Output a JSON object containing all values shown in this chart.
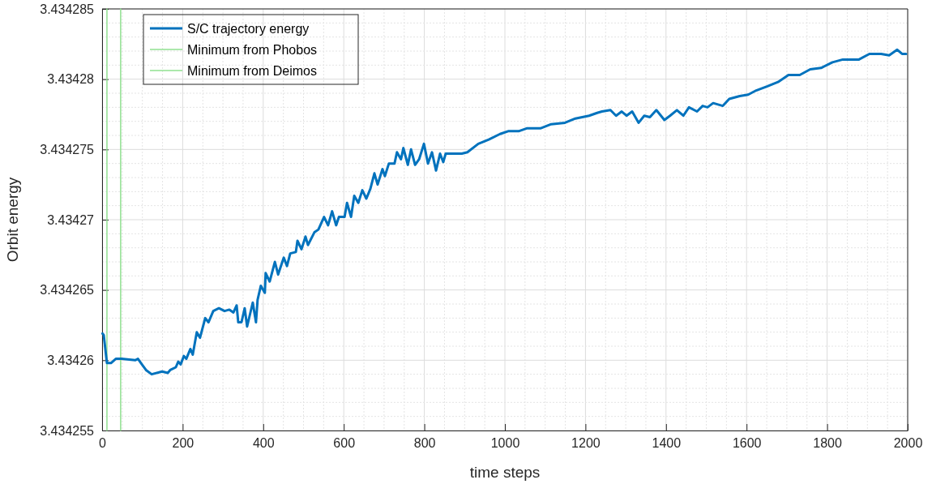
{
  "chart_data": {
    "type": "line",
    "xlabel": "time steps",
    "ylabel": "Orbit energy",
    "xlim": [
      0,
      2000
    ],
    "xticks": [
      0,
      200,
      400,
      600,
      800,
      1000,
      1200,
      1400,
      1600,
      1800,
      2000
    ],
    "ylim": [
      3.434255,
      3.434285
    ],
    "yticks": [
      3.434255,
      3.43426,
      3.434265,
      3.43427,
      3.434275,
      3.43428,
      3.434285
    ],
    "grid": true,
    "legend": "top left",
    "line_style": "solid",
    "marker": "none",
    "series": [
      {
        "name": "S/C trajectory energy",
        "color": "#0072bd",
        "x": [
          1,
          4,
          12,
          22,
          34,
          48,
          82,
          89,
          99,
          109,
          123,
          149,
          163,
          169,
          183,
          189,
          195,
          203,
          209,
          219,
          225,
          235,
          243,
          256,
          264,
          276,
          290,
          304,
          316,
          326,
          334,
          338,
          346,
          354,
          360,
          374,
          382,
          386,
          394,
          404,
          406,
          416,
          429,
          437,
          451,
          459,
          467,
          481,
          485,
          495,
          505,
          511,
          527,
          537,
          551,
          561,
          571,
          581,
          588,
          602,
          608,
          618,
          626,
          636,
          646,
          656,
          666,
          676,
          684,
          696,
          702,
          712,
          726,
          732,
          742,
          748,
          759,
          767,
          777,
          787,
          799,
          809,
          819,
          829,
          839,
          847,
          853,
          893,
          907,
          934,
          960,
          988,
          1008,
          1034,
          1054,
          1088,
          1115,
          1149,
          1175,
          1209,
          1229,
          1241,
          1262,
          1276,
          1290,
          1302,
          1316,
          1332,
          1346,
          1360,
          1376,
          1396,
          1410,
          1427,
          1443,
          1457,
          1477,
          1491,
          1503,
          1517,
          1541,
          1557,
          1583,
          1604,
          1624,
          1652,
          1678,
          1704,
          1732,
          1758,
          1785,
          1813,
          1839,
          1879,
          1905,
          1934,
          1954,
          1974,
          1986,
          1996
        ],
        "values": [
          3.4342619,
          3.4342618,
          3.4342598,
          3.4342598,
          3.4342601,
          3.4342601,
          3.43426,
          3.4342601,
          3.4342597,
          3.4342593,
          3.434259,
          3.4342592,
          3.4342591,
          3.4342593,
          3.4342595,
          3.4342599,
          3.4342597,
          3.4342603,
          3.4342601,
          3.4342608,
          3.4342604,
          3.434262,
          3.4342616,
          3.434263,
          3.4342627,
          3.4342635,
          3.4342637,
          3.4342635,
          3.4342636,
          3.4342634,
          3.4342639,
          3.4342627,
          3.4342627,
          3.4342637,
          3.4342624,
          3.4342641,
          3.4342627,
          3.4342643,
          3.4342653,
          3.4342648,
          3.4342662,
          3.4342656,
          3.434267,
          3.4342661,
          3.4342673,
          3.4342667,
          3.4342676,
          3.4342677,
          3.4342685,
          3.4342679,
          3.4342688,
          3.4342682,
          3.4342691,
          3.4342693,
          3.4342702,
          3.4342696,
          3.4342706,
          3.4342696,
          3.4342702,
          3.4342702,
          3.4342712,
          3.4342702,
          3.4342717,
          3.4342712,
          3.4342721,
          3.4342715,
          3.4342722,
          3.4342733,
          3.4342725,
          3.4342736,
          3.4342731,
          3.434274,
          3.434274,
          3.4342748,
          3.4342743,
          3.4342751,
          3.4342739,
          3.434275,
          3.4342739,
          3.4342743,
          3.4342754,
          3.434274,
          3.4342748,
          3.4342735,
          3.4342747,
          3.4342741,
          3.4342747,
          3.4342747,
          3.4342748,
          3.4342754,
          3.4342757,
          3.4342761,
          3.4342763,
          3.4342763,
          3.4342765,
          3.4342765,
          3.4342768,
          3.4342769,
          3.4342772,
          3.4342774,
          3.4342776,
          3.4342777,
          3.4342778,
          3.4342774,
          3.4342777,
          3.4342774,
          3.4342777,
          3.4342769,
          3.4342774,
          3.4342773,
          3.4342778,
          3.4342771,
          3.4342774,
          3.4342778,
          3.4342774,
          3.434278,
          3.4342777,
          3.4342781,
          3.434278,
          3.4342783,
          3.4342781,
          3.4342786,
          3.4342788,
          3.4342789,
          3.4342792,
          3.4342795,
          3.4342798,
          3.4342803,
          3.4342803,
          3.4342807,
          3.4342808,
          3.4342812,
          3.4342814,
          3.4342814,
          3.4342818,
          3.4342818,
          3.4342817,
          3.4342821,
          3.4342818,
          3.4342818
        ]
      },
      {
        "name": "Minimum from Phobos",
        "color": "#90e090",
        "x": [
          12,
          12
        ],
        "values": [
          3.434255,
          3.434285
        ]
      },
      {
        "name": "Minimum from Deimos",
        "color": "#90e090",
        "x": [
          46,
          46
        ],
        "values": [
          3.434255,
          3.434285
        ]
      }
    ]
  }
}
